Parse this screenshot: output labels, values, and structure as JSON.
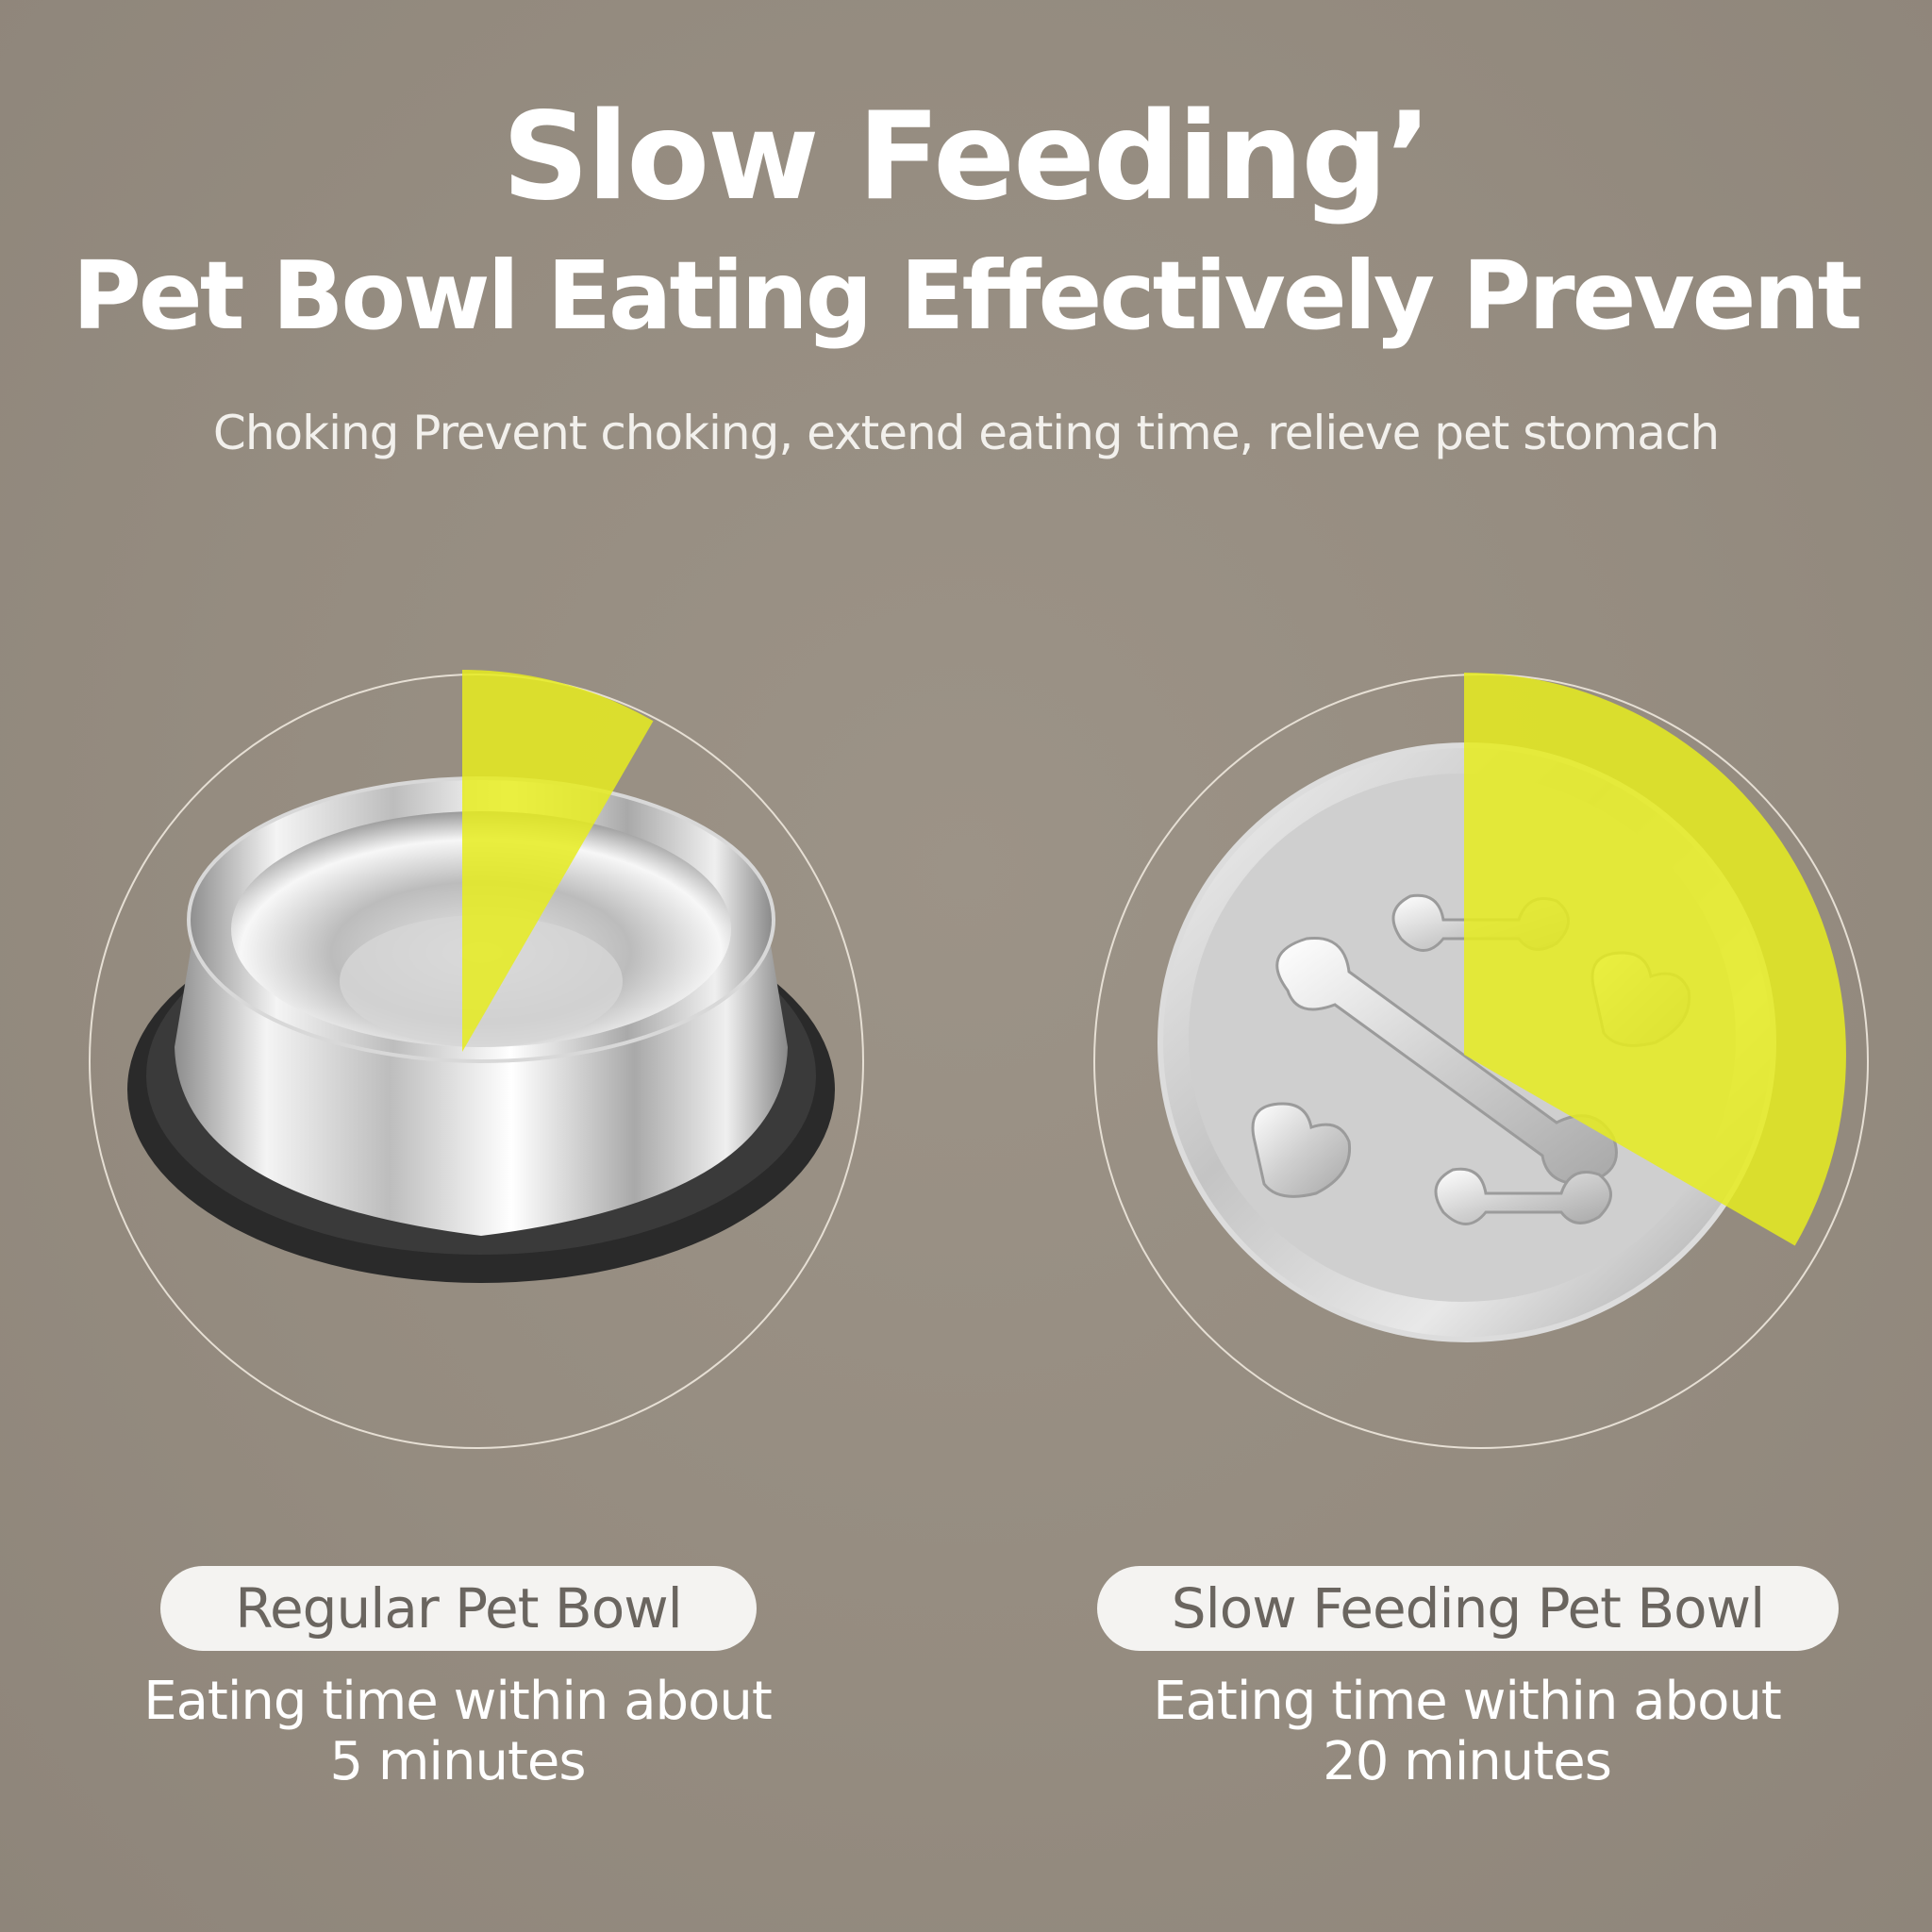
{
  "header": {
    "title": "Slow Feeding’",
    "subtitle": "Pet Bowl Eating Effectively Prevent",
    "tagline": "Choking Prevent choking, extend eating time, relieve pet stomach"
  },
  "comparison": [
    {
      "label": "Regular Pet Bowl",
      "desc_line1": "Eating time within about",
      "desc_line2": "5 minutes",
      "minutes": 5
    },
    {
      "label": "Slow Feeding Pet Bowl",
      "desc_line1": "Eating time within about",
      "desc_line2": "20 minutes",
      "minutes": 20
    }
  ],
  "colors": {
    "background": "#958c80",
    "accent_yellow": "#e6ec1e",
    "pill_bg": "#f4f3f1",
    "pill_text": "#6a655f"
  }
}
